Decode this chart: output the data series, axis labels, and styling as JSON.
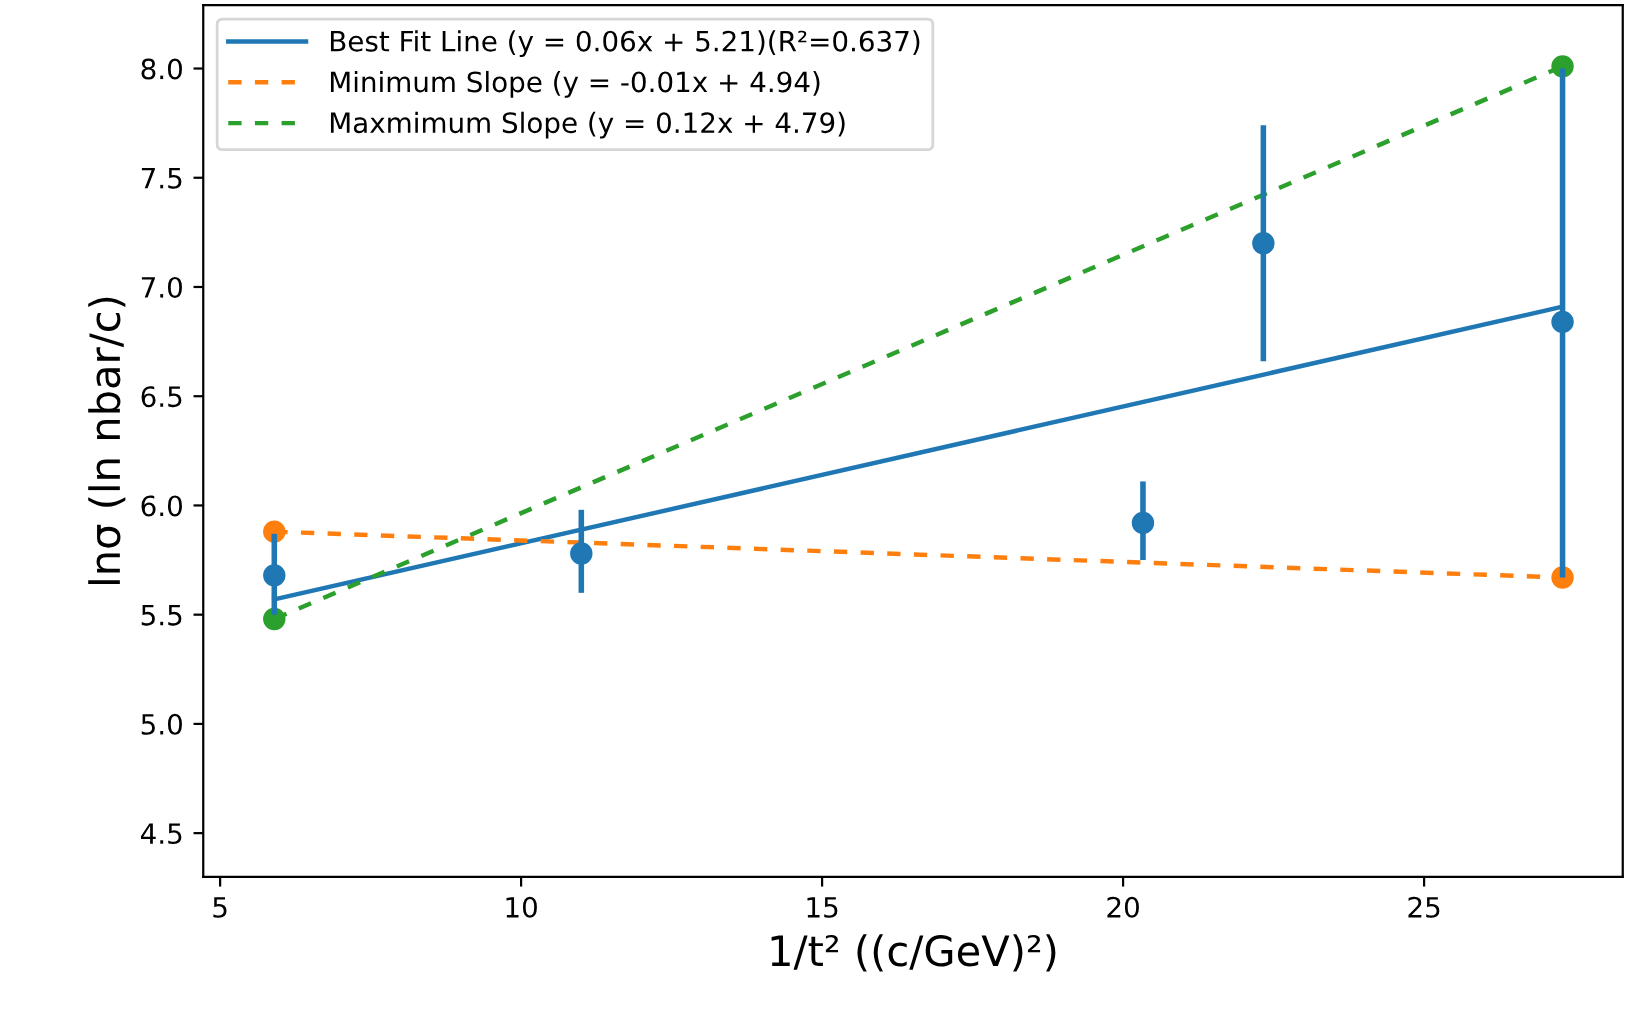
{
  "chart_data": {
    "type": "scatter",
    "xlabel": "1/t² ((c/GeV)²)",
    "ylabel": "lnσ (ln nbar/c)",
    "xlim": [
      4.72,
      28.3
    ],
    "xticks": [
      5,
      10,
      15,
      20,
      25
    ],
    "ylim": [
      4.3,
      8.29
    ],
    "yticks": [
      4.5,
      {
        "value": 5,
        "label": "5.0"
      },
      5.5,
      {
        "value": 6,
        "label": "6.0"
      },
      6.5,
      {
        "value": 7,
        "label": "7.0"
      },
      7.5,
      {
        "value": 8,
        "label": "8.0"
      }
    ],
    "grid": false,
    "legend": "top left",
    "series": [
      {
        "color": "#1f77b4",
        "x": [
          5.9,
          11.0,
          20.33,
          22.33,
          27.3
        ],
        "values": [
          5.68,
          5.78,
          5.92,
          7.2,
          6.84
        ],
        "errors": [
          [
            5.5,
            5.87
          ],
          [
            5.6,
            5.98
          ],
          [
            5.75,
            6.11
          ],
          [
            6.66,
            7.74
          ],
          [
            5.67,
            8.0
          ]
        ],
        "marker": "circle"
      },
      {
        "type": "line",
        "name": "Best Fit Line (y = 0.06x + 5.21)(R²=0.637)",
        "color": "#1f77b4",
        "x": [
          5.9,
          27.3
        ],
        "values": [
          5.57,
          6.91
        ],
        "line_style": "solid",
        "marker": "none"
      },
      {
        "type": "line",
        "name": "Minimum Slope (y = -0.01x + 4.94)",
        "color": "#ff7f0e",
        "x": [
          5.9,
          27.3
        ],
        "values": [
          5.88,
          5.67
        ],
        "line_style": "dashed",
        "marker": "circle"
      },
      {
        "type": "line",
        "name": "Maxmimum Slope (y = 0.12x + 4.79)",
        "color": "#2ca02c",
        "x": [
          5.9,
          27.3
        ],
        "values": [
          5.48,
          8.01
        ],
        "line_style": "dashed",
        "marker": "circle"
      }
    ]
  }
}
